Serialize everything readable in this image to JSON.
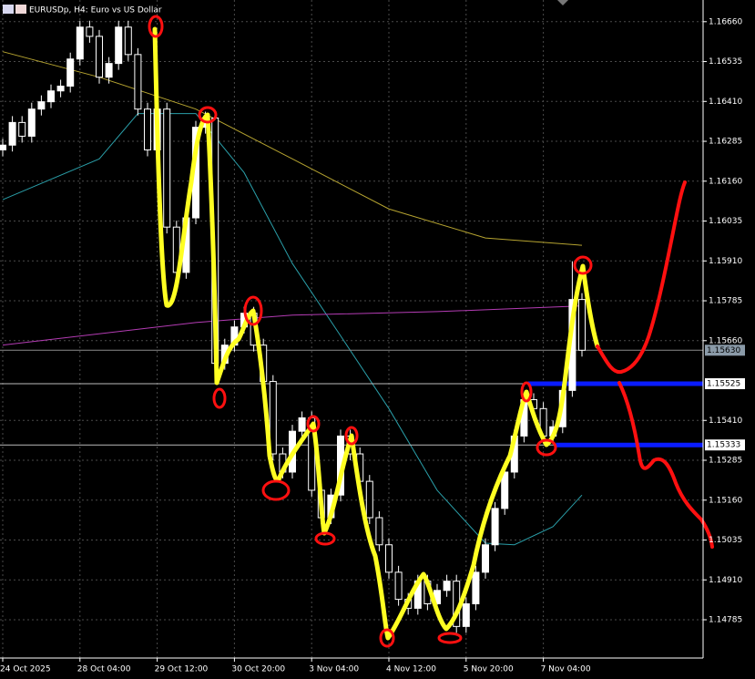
{
  "chart_data": {
    "type": "candlestick",
    "title": "EURUSDp, H4:  Euro vs US Dollar",
    "categories": [
      "24 Oct 2025",
      null,
      null,
      null,
      null,
      null,
      null,
      null,
      "28 Oct 04:00",
      null,
      null,
      null,
      null,
      null,
      null,
      null,
      "29 Oct 12:00",
      null,
      null,
      null,
      null,
      null,
      null,
      null,
      "30 Oct 20:00",
      null,
      null,
      null,
      null,
      null,
      null,
      null,
      "3 Nov 04:00",
      null,
      null,
      null,
      null,
      null,
      null,
      null,
      "4 Nov 12:00",
      null,
      null,
      null,
      null,
      null,
      null,
      null,
      "5 Nov 20:00",
      null,
      null,
      null,
      null,
      null,
      null,
      null,
      "7 Nov 04:00",
      null,
      null,
      null,
      null
    ],
    "open": [
      1.16258,
      1.16273,
      1.16344,
      1.16301,
      1.16386,
      1.16409,
      1.16443,
      1.16458,
      1.16543,
      1.16643,
      1.16614,
      1.16486,
      1.16529,
      1.16643,
      1.16557,
      1.16386,
      1.16258,
      1.16386,
      1.16016,
      1.15874,
      1.16045,
      1.16329,
      1.16358,
      1.15589,
      1.15646,
      1.15703,
      1.15746,
      1.15646,
      1.15532,
      1.15305,
      1.15248,
      1.15376,
      1.15418,
      1.15191,
      1.15105,
      1.15176,
      1.15361,
      1.15305,
      1.15219,
      1.15105,
      1.1502,
      1.14934,
      1.14849,
      1.14821,
      1.14906,
      1.14835,
      1.14877,
      1.14906,
      1.14764,
      1.14835,
      1.14934,
      1.1502,
      1.15134,
      1.15248,
      1.15361,
      1.15475,
      1.15447,
      1.15361,
      1.1539,
      1.15504,
      1.15789
    ],
    "high": [
      1.16293,
      1.16364,
      1.16364,
      1.16406,
      1.16429,
      1.16463,
      1.16478,
      1.16563,
      1.16663,
      1.16663,
      1.16634,
      1.16549,
      1.16663,
      1.16663,
      1.16577,
      1.16406,
      1.16406,
      1.16406,
      1.16036,
      1.16065,
      1.16349,
      1.16378,
      1.16378,
      1.15666,
      1.15723,
      1.15766,
      1.15766,
      1.15666,
      1.15552,
      1.15325,
      1.15396,
      1.15438,
      1.15438,
      1.15211,
      1.15196,
      1.15381,
      1.15381,
      1.15325,
      1.15239,
      1.15125,
      1.1504,
      1.14954,
      1.14869,
      1.14926,
      1.14926,
      1.14897,
      1.14926,
      1.14926,
      1.14855,
      1.14954,
      1.1504,
      1.15154,
      1.15268,
      1.15381,
      1.15495,
      1.15495,
      1.15467,
      1.1541,
      1.15524,
      1.15909,
      1.15809
    ],
    "low": [
      1.16238,
      1.16253,
      1.16281,
      1.16281,
      1.16366,
      1.16389,
      1.16423,
      1.16438,
      1.16523,
      1.16594,
      1.16466,
      1.16466,
      1.16509,
      1.16537,
      1.16366,
      1.16238,
      1.16238,
      1.15996,
      1.15854,
      1.15854,
      1.16025,
      1.16309,
      1.15569,
      1.15569,
      1.15626,
      1.15683,
      1.15626,
      1.15512,
      1.15285,
      1.15228,
      1.15228,
      1.15356,
      1.15171,
      1.15085,
      1.15085,
      1.15156,
      1.15285,
      1.15199,
      1.15085,
      1.15,
      1.14914,
      1.14829,
      1.14801,
      1.14801,
      1.14815,
      1.14815,
      1.14857,
      1.14744,
      1.14744,
      1.14815,
      1.14914,
      1.15,
      1.15114,
      1.15228,
      1.15341,
      1.15427,
      1.15341,
      1.15341,
      1.1537,
      1.15484,
      1.1561
    ],
    "close": [
      1.16273,
      1.16344,
      1.16301,
      1.16386,
      1.16409,
      1.16443,
      1.16458,
      1.16543,
      1.16643,
      1.16614,
      1.16486,
      1.16529,
      1.16643,
      1.16557,
      1.16386,
      1.16258,
      1.16386,
      1.16016,
      1.15874,
      1.16045,
      1.16329,
      1.16358,
      1.15589,
      1.15646,
      1.15703,
      1.15746,
      1.15646,
      1.15532,
      1.15305,
      1.15248,
      1.15376,
      1.15418,
      1.15191,
      1.15105,
      1.15176,
      1.15361,
      1.15305,
      1.15219,
      1.15105,
      1.1502,
      1.14934,
      1.14849,
      1.14821,
      1.14906,
      1.14835,
      1.14877,
      1.14906,
      1.14764,
      1.14835,
      1.14934,
      1.1502,
      1.15134,
      1.15248,
      1.15361,
      1.15475,
      1.15447,
      1.15361,
      1.1539,
      1.15504,
      1.15789,
      1.1563
    ],
    "up_color": "#ffffff",
    "down_color": "#000000",
    "overlays": [
      {
        "color": "#b5a330",
        "x": [
          0,
          10,
          20,
          30,
          40,
          50,
          60
        ],
        "values": [
          1.16566,
          1.16486,
          1.16386,
          1.1623,
          1.16073,
          1.15982,
          1.15959
        ]
      },
      {
        "color": "#2a9ea8",
        "x": [
          0,
          10,
          14,
          20,
          25,
          30,
          35,
          40,
          45,
          50,
          53,
          57,
          60
        ],
        "values": [
          1.16102,
          1.1623,
          1.16372,
          1.16372,
          1.16187,
          1.15902,
          1.15675,
          1.15447,
          1.15191,
          1.15025,
          1.1502,
          1.15077,
          1.15176
        ]
      },
      {
        "color": "#b43cb4",
        "x": [
          0,
          20,
          30,
          45,
          60
        ],
        "values": [
          1.15646,
          1.15717,
          1.1574,
          1.15751,
          1.15769
        ]
      }
    ],
    "price_levels": [
      {
        "value": 1.1563,
        "label": "1.15630",
        "color": "#8a8a8a",
        "label_bg": "#8a9aa8"
      },
      {
        "value": 1.15525,
        "label": "1.15525",
        "color": "#bbbbbb",
        "label_bg": "#ffffff",
        "segment_color": "#0a1cff",
        "segment_start": 54.4
      },
      {
        "value": 1.15333,
        "label": "1.15333",
        "color": "#bbbbbb",
        "label_bg": "#ffffff",
        "segment_color": "#0a1cff",
        "segment_start": 57.3
      }
    ],
    "ylim": [
      1.14665,
      1.16728
    ],
    "yticks": [
      {
        "value": 1.1666,
        "label": "1.16660"
      },
      {
        "value": 1.16535,
        "label": "1.16535"
      },
      {
        "value": 1.1641,
        "label": "1.16410"
      },
      {
        "value": 1.16285,
        "label": "1.16285"
      },
      {
        "value": 1.1616,
        "label": "1.16160"
      },
      {
        "value": 1.16035,
        "label": "1.16035"
      },
      {
        "value": 1.1591,
        "label": "1.15910"
      },
      {
        "value": 1.15785,
        "label": "1.15785"
      },
      {
        "value": 1.1566,
        "label": "1.15660"
      },
      {
        "value": 1.1541,
        "label": "1.15410"
      },
      {
        "value": 1.15285,
        "label": "1.15285"
      },
      {
        "value": 1.1516,
        "label": "1.15160"
      },
      {
        "value": 1.15035,
        "label": "1.15035"
      },
      {
        "value": 1.1491,
        "label": "1.14910"
      },
      {
        "value": 1.14785,
        "label": "1.14785"
      }
    ],
    "grid": true
  }
}
